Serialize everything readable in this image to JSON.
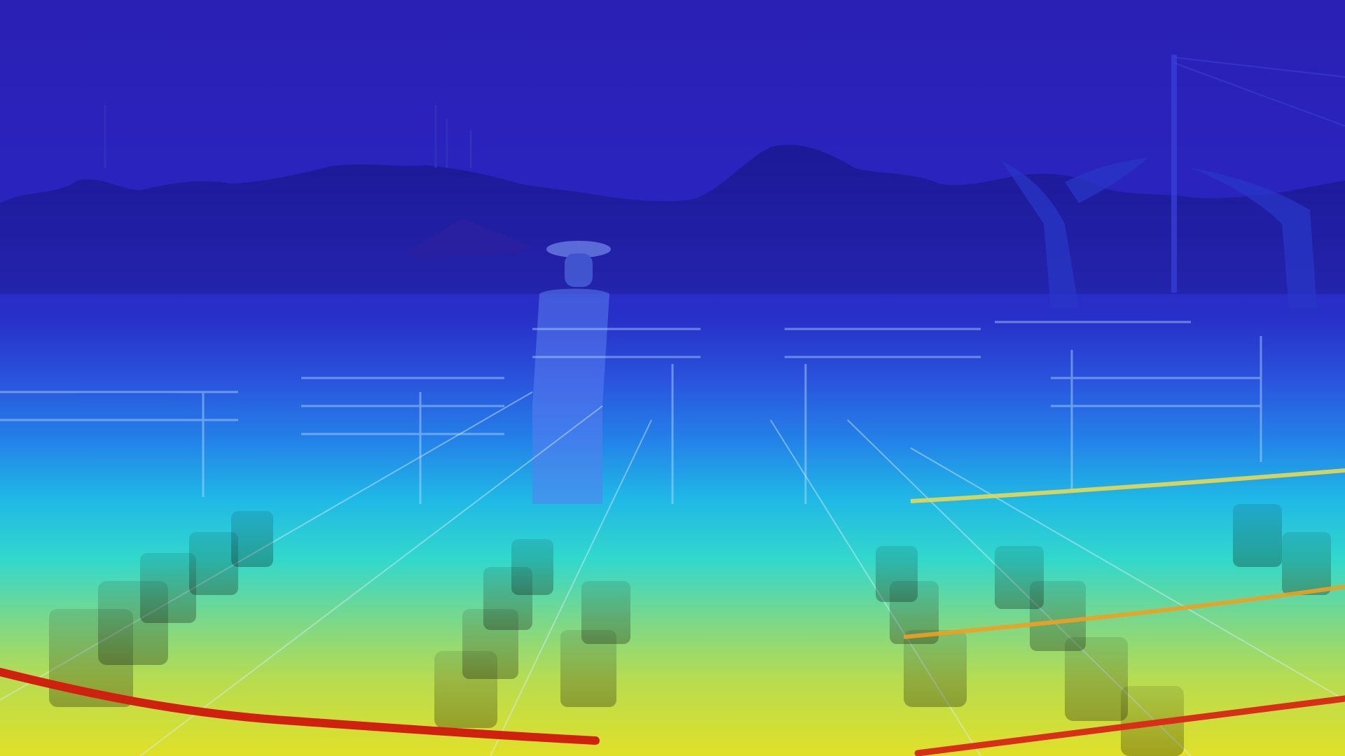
{
  "image": {
    "kind": "depth-map-overlay",
    "colormap": "jet",
    "description_visible": "",
    "palette": {
      "far": "#1e1ec0",
      "sky_top": "#2a22b8",
      "sky_mid": "#2e2ec8",
      "tree_line": "#1a1690",
      "mid_blue": "#2a5fe0",
      "cyan": "#22c8e0",
      "teal": "#3ad8c8",
      "green": "#7ad87a",
      "yellow": "#d8e030",
      "orange": "#e89a20",
      "red": "#d82818"
    }
  }
}
